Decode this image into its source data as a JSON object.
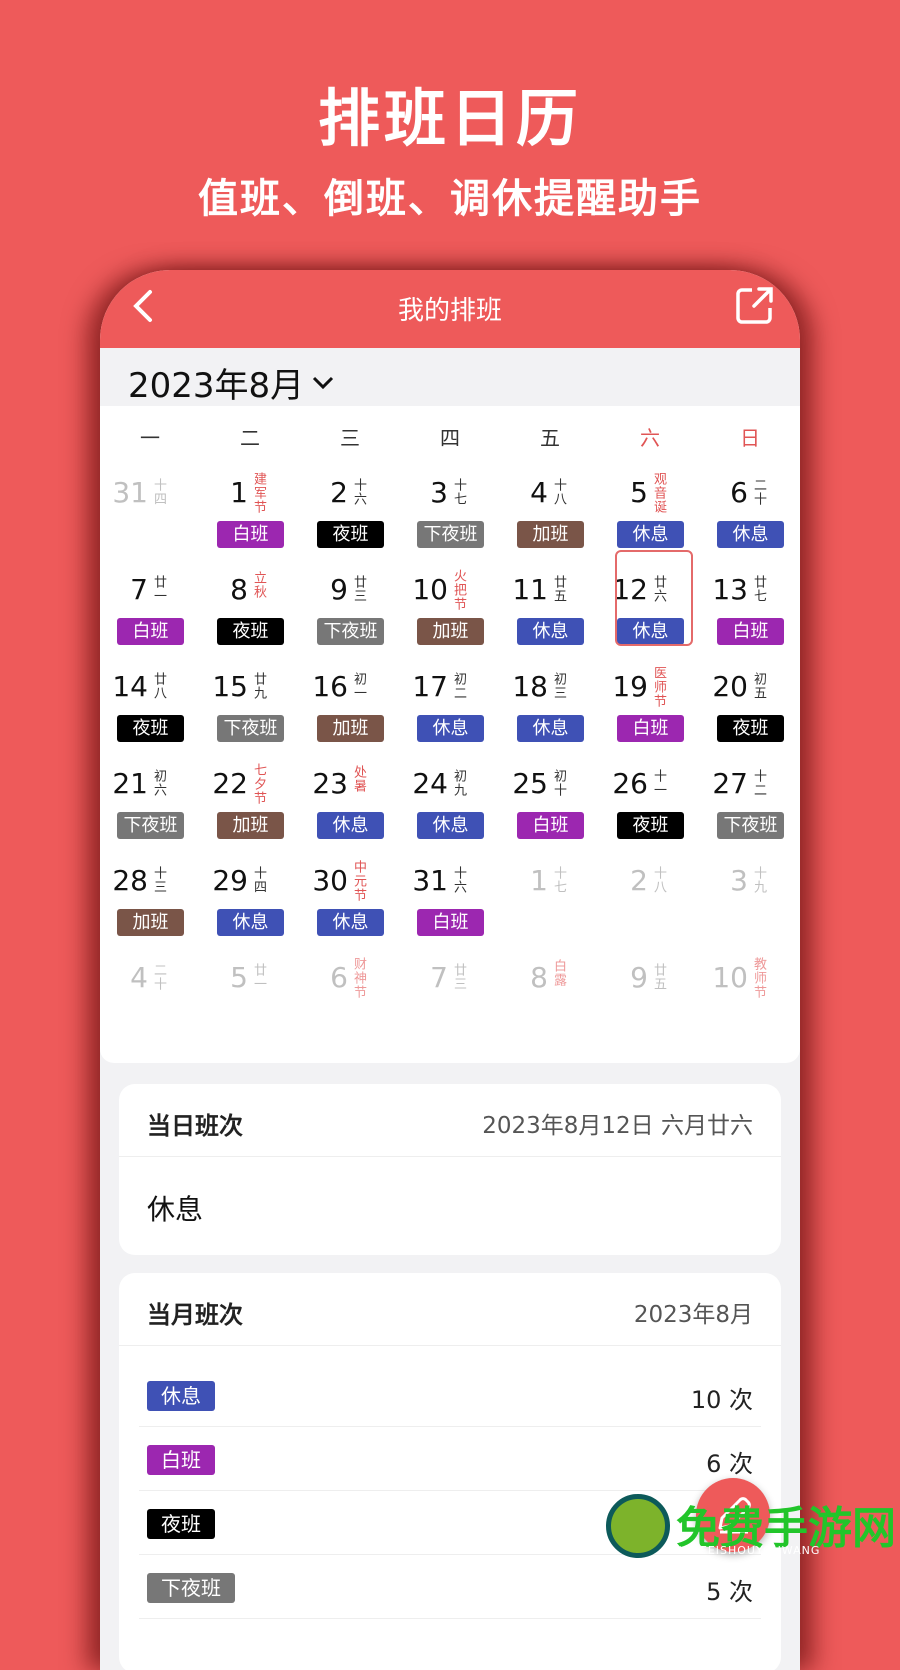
{
  "hero": {
    "title": "排班日历",
    "subtitle": "值班、倒班、调休提醒助手"
  },
  "appbar": {
    "title": "我的排班",
    "back_icon": "chevron-left-icon",
    "share_icon": "external-share-icon"
  },
  "month_picker": {
    "label": "2023年8月",
    "icon": "chevron-down-icon"
  },
  "weekdays": [
    "一",
    "二",
    "三",
    "四",
    "五",
    "六",
    "日"
  ],
  "shift_colors": {
    "白班": "#9c27b0",
    "夜班": "#000000",
    "下夜班": "#777777",
    "加班": "#7a5548",
    "休息": "#3f51b5"
  },
  "calendar": [
    {
      "d": "31",
      "l": "十四",
      "fade": true
    },
    {
      "d": "1",
      "l": "建军节",
      "fest": true,
      "s": "白班"
    },
    {
      "d": "2",
      "l": "十六",
      "s": "夜班"
    },
    {
      "d": "3",
      "l": "十七",
      "s": "下夜班"
    },
    {
      "d": "4",
      "l": "十八",
      "s": "加班"
    },
    {
      "d": "5",
      "l": "观音诞",
      "fest": true,
      "s": "休息"
    },
    {
      "d": "6",
      "l": "二十",
      "s": "休息"
    },
    {
      "d": "7",
      "l": "廿一",
      "s": "白班"
    },
    {
      "d": "8",
      "l": "立秋",
      "fest": true,
      "s": "夜班"
    },
    {
      "d": "9",
      "l": "廿三",
      "s": "下夜班"
    },
    {
      "d": "10",
      "l": "火把节",
      "fest": true,
      "s": "加班"
    },
    {
      "d": "11",
      "l": "廿五",
      "s": "休息"
    },
    {
      "d": "12",
      "l": "廿六",
      "s": "休息",
      "sel": true
    },
    {
      "d": "13",
      "l": "廿七",
      "s": "白班"
    },
    {
      "d": "14",
      "l": "廿八",
      "s": "夜班"
    },
    {
      "d": "15",
      "l": "廿九",
      "s": "下夜班"
    },
    {
      "d": "16",
      "l": "初一",
      "s": "加班"
    },
    {
      "d": "17",
      "l": "初二",
      "s": "休息"
    },
    {
      "d": "18",
      "l": "初三",
      "s": "休息"
    },
    {
      "d": "19",
      "l": "医师节",
      "fest": true,
      "s": "白班"
    },
    {
      "d": "20",
      "l": "初五",
      "s": "夜班"
    },
    {
      "d": "21",
      "l": "初六",
      "s": "下夜班"
    },
    {
      "d": "22",
      "l": "七夕节",
      "fest": true,
      "s": "加班"
    },
    {
      "d": "23",
      "l": "处暑",
      "fest": true,
      "s": "休息"
    },
    {
      "d": "24",
      "l": "初九",
      "s": "休息"
    },
    {
      "d": "25",
      "l": "初十",
      "s": "白班"
    },
    {
      "d": "26",
      "l": "十一",
      "s": "夜班"
    },
    {
      "d": "27",
      "l": "十二",
      "s": "下夜班"
    },
    {
      "d": "28",
      "l": "十三",
      "s": "加班"
    },
    {
      "d": "29",
      "l": "十四",
      "s": "休息"
    },
    {
      "d": "30",
      "l": "中元节",
      "fest": true,
      "s": "休息"
    },
    {
      "d": "31",
      "l": "十六",
      "s": "白班"
    },
    {
      "d": "1",
      "l": "十七",
      "fade": true
    },
    {
      "d": "2",
      "l": "十八",
      "fade": true
    },
    {
      "d": "3",
      "l": "十九",
      "fade": true
    },
    {
      "d": "4",
      "l": "二十",
      "fade": true
    },
    {
      "d": "5",
      "l": "廿一",
      "fade": true
    },
    {
      "d": "6",
      "l": "财神节",
      "fest": true,
      "fade": true
    },
    {
      "d": "7",
      "l": "廿三",
      "fade": true
    },
    {
      "d": "8",
      "l": "白露",
      "fest": true,
      "fade": true
    },
    {
      "d": "9",
      "l": "廿五",
      "fade": true
    },
    {
      "d": "10",
      "l": "教师节",
      "fest": true,
      "fade": true
    }
  ],
  "day_card": {
    "title": "当日班次",
    "date": "2023年8月12日 六月廿六",
    "shift": "休息"
  },
  "month_card": {
    "title": "当月班次",
    "month": "2023年8月",
    "rows": [
      {
        "shift": "休息",
        "count": "10 次"
      },
      {
        "shift": "白班",
        "count": "6 次"
      },
      {
        "shift": "夜班",
        "count": ""
      },
      {
        "shift": "下夜班",
        "count": "5 次"
      }
    ]
  },
  "fab": {
    "icon": "pencil-icon"
  },
  "watermark": {
    "text": "免费手游网",
    "sub": "MIANFEISHOUYOUWANG"
  }
}
